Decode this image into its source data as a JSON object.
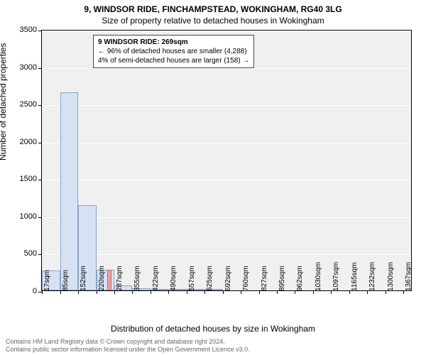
{
  "title": "9, WINDSOR RIDE, FINCHAMPSTEAD, WOKINGHAM, RG40 3LG",
  "subtitle": "Size of property relative to detached houses in Wokingham",
  "ylabel": "Number of detached properties",
  "xlabel": "Distribution of detached houses by size in Wokingham",
  "footer_line1": "Contains HM Land Registry data © Crown copyright and database right 2024.",
  "footer_line2": "Contains public sector information licensed under the Open Government Licence v3.0.",
  "annotation": {
    "title": "9 WINDSOR RIDE: 269sqm",
    "line1": "← 96% of detached houses are smaller (4,288)",
    "line2": "4% of semi-detached houses are larger (158) →"
  },
  "chart": {
    "type": "histogram",
    "background_color": "#f0f0f0",
    "grid_color": "#ffffff",
    "bar_fill": "#d6e2f3",
    "bar_edge": "#8aa3c9",
    "marker_fill": "#e7a3a3",
    "marker_edge": "#c86a6a",
    "ylim": [
      0,
      3500
    ],
    "yticks": [
      0,
      500,
      1000,
      1500,
      2000,
      2500,
      3000,
      3500
    ],
    "xticks": [
      17,
      85,
      152,
      220,
      287,
      355,
      422,
      490,
      557,
      625,
      692,
      760,
      827,
      895,
      962,
      1030,
      1097,
      1165,
      1232,
      1300,
      1367
    ],
    "xtick_unit": "sqm",
    "xlim": [
      17,
      1401
    ],
    "marker_x": 269,
    "marker_height": 280,
    "bars": [
      {
        "x0": 17,
        "x1": 85,
        "y": 270
      },
      {
        "x0": 85,
        "x1": 152,
        "y": 2650
      },
      {
        "x0": 152,
        "x1": 220,
        "y": 1140
      },
      {
        "x0": 220,
        "x1": 287,
        "y": 280
      },
      {
        "x0": 287,
        "x1": 355,
        "y": 70
      },
      {
        "x0": 355,
        "x1": 422,
        "y": 30
      },
      {
        "x0": 422,
        "x1": 490,
        "y": 15
      },
      {
        "x0": 490,
        "x1": 557,
        "y": 10
      },
      {
        "x0": 557,
        "x1": 625,
        "y": 5
      },
      {
        "x0": 625,
        "x1": 692,
        "y": 3
      }
    ],
    "title_fontsize": 12,
    "label_fontsize": 12,
    "tick_fontsize": 10
  }
}
